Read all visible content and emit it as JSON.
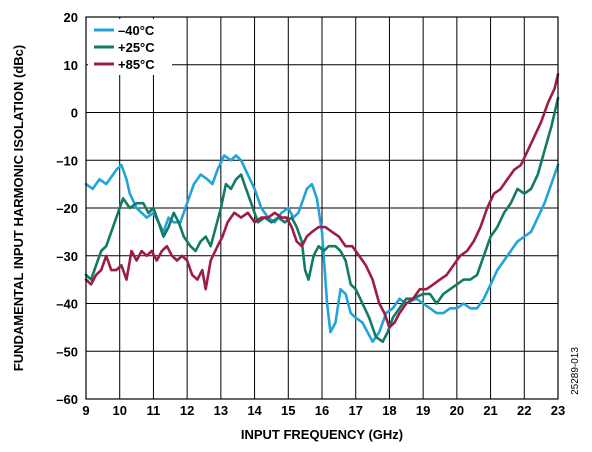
{
  "chart_data": {
    "type": "line",
    "title": "",
    "xlabel": "INPUT FREQUENCY (GHz)",
    "ylabel": "FUNDAMENTAL INPUT HARMONIC ISOLATION (dBc)",
    "xlim": [
      9,
      23
    ],
    "ylim": [
      -60,
      20
    ],
    "xticks": [
      "9",
      "10",
      "11",
      "12",
      "13",
      "14",
      "15",
      "16",
      "17",
      "18",
      "19",
      "20",
      "21",
      "22",
      "23"
    ],
    "yticks": [
      "20",
      "10",
      "0",
      "–10",
      "–20",
      "–30",
      "–40",
      "–50",
      "–60"
    ],
    "grid": true,
    "legend_position": "top-left",
    "figure_id": "25289-013",
    "series": [
      {
        "name": "–40°C",
        "color": "#22a4d8",
        "points": [
          [
            9.0,
            -15
          ],
          [
            9.2,
            -16
          ],
          [
            9.4,
            -14
          ],
          [
            9.6,
            -15
          ],
          [
            9.8,
            -13
          ],
          [
            9.9,
            -12
          ],
          [
            10.05,
            -11
          ],
          [
            10.2,
            -14
          ],
          [
            10.3,
            -17
          ],
          [
            10.5,
            -20
          ],
          [
            10.8,
            -22
          ],
          [
            11.0,
            -21
          ],
          [
            11.15,
            -23
          ],
          [
            11.3,
            -25
          ],
          [
            11.45,
            -22
          ],
          [
            11.6,
            -23
          ],
          [
            11.8,
            -23
          ],
          [
            12.0,
            -19
          ],
          [
            12.2,
            -15
          ],
          [
            12.4,
            -13
          ],
          [
            12.6,
            -14
          ],
          [
            12.75,
            -15
          ],
          [
            12.9,
            -12
          ],
          [
            13.1,
            -9
          ],
          [
            13.3,
            -10
          ],
          [
            13.45,
            -9
          ],
          [
            13.6,
            -10
          ],
          [
            13.8,
            -13
          ],
          [
            14.0,
            -16
          ],
          [
            14.2,
            -20
          ],
          [
            14.4,
            -22
          ],
          [
            14.6,
            -23
          ],
          [
            14.8,
            -21
          ],
          [
            15.0,
            -20
          ],
          [
            15.15,
            -22
          ],
          [
            15.3,
            -21
          ],
          [
            15.45,
            -18
          ],
          [
            15.55,
            -16
          ],
          [
            15.7,
            -15
          ],
          [
            15.85,
            -18
          ],
          [
            16.0,
            -25
          ],
          [
            16.15,
            -40
          ],
          [
            16.25,
            -46
          ],
          [
            16.4,
            -44
          ],
          [
            16.55,
            -37
          ],
          [
            16.7,
            -38
          ],
          [
            16.85,
            -42
          ],
          [
            17.0,
            -43
          ],
          [
            17.2,
            -44
          ],
          [
            17.35,
            -46
          ],
          [
            17.5,
            -48
          ],
          [
            17.7,
            -46
          ],
          [
            17.9,
            -42
          ],
          [
            18.1,
            -41
          ],
          [
            18.3,
            -39
          ],
          [
            18.5,
            -40
          ],
          [
            18.8,
            -39
          ],
          [
            19.0,
            -40
          ],
          [
            19.2,
            -41
          ],
          [
            19.4,
            -42
          ],
          [
            19.6,
            -42
          ],
          [
            19.8,
            -41
          ],
          [
            20.0,
            -41
          ],
          [
            20.2,
            -40
          ],
          [
            20.4,
            -41
          ],
          [
            20.6,
            -41
          ],
          [
            20.8,
            -39
          ],
          [
            21.0,
            -36
          ],
          [
            21.2,
            -33
          ],
          [
            21.4,
            -31
          ],
          [
            21.6,
            -29
          ],
          [
            21.8,
            -27
          ],
          [
            22.0,
            -26
          ],
          [
            22.2,
            -25
          ],
          [
            22.4,
            -22
          ],
          [
            22.6,
            -19
          ],
          [
            22.8,
            -15
          ],
          [
            23.0,
            -11
          ]
        ]
      },
      {
        "name": "+25°C",
        "color": "#127a66",
        "points": [
          [
            9.0,
            -34
          ],
          [
            9.15,
            -35
          ],
          [
            9.3,
            -32
          ],
          [
            9.45,
            -29
          ],
          [
            9.6,
            -28
          ],
          [
            9.8,
            -24
          ],
          [
            9.95,
            -21
          ],
          [
            10.1,
            -18
          ],
          [
            10.3,
            -20
          ],
          [
            10.5,
            -19
          ],
          [
            10.7,
            -19
          ],
          [
            10.85,
            -21
          ],
          [
            11.0,
            -20
          ],
          [
            11.15,
            -23
          ],
          [
            11.3,
            -26
          ],
          [
            11.45,
            -24
          ],
          [
            11.6,
            -21
          ],
          [
            11.75,
            -23
          ],
          [
            11.9,
            -26
          ],
          [
            12.1,
            -28
          ],
          [
            12.25,
            -29
          ],
          [
            12.4,
            -27
          ],
          [
            12.55,
            -26
          ],
          [
            12.7,
            -28
          ],
          [
            12.85,
            -24
          ],
          [
            13.0,
            -20
          ],
          [
            13.15,
            -15
          ],
          [
            13.3,
            -16
          ],
          [
            13.45,
            -14
          ],
          [
            13.6,
            -13
          ],
          [
            13.75,
            -16
          ],
          [
            13.9,
            -19
          ],
          [
            14.1,
            -23
          ],
          [
            14.3,
            -22
          ],
          [
            14.5,
            -23
          ],
          [
            14.7,
            -22
          ],
          [
            14.9,
            -23
          ],
          [
            15.1,
            -22
          ],
          [
            15.25,
            -24
          ],
          [
            15.4,
            -27
          ],
          [
            15.5,
            -33
          ],
          [
            15.6,
            -35
          ],
          [
            15.75,
            -30
          ],
          [
            15.9,
            -28
          ],
          [
            16.05,
            -29
          ],
          [
            16.2,
            -28
          ],
          [
            16.4,
            -28
          ],
          [
            16.55,
            -29
          ],
          [
            16.7,
            -31
          ],
          [
            16.85,
            -36
          ],
          [
            17.0,
            -37
          ],
          [
            17.2,
            -40
          ],
          [
            17.4,
            -43
          ],
          [
            17.6,
            -47
          ],
          [
            17.8,
            -48
          ],
          [
            17.95,
            -46
          ],
          [
            18.1,
            -43
          ],
          [
            18.3,
            -41
          ],
          [
            18.5,
            -39
          ],
          [
            18.7,
            -39
          ],
          [
            19.0,
            -38
          ],
          [
            19.2,
            -38
          ],
          [
            19.4,
            -40
          ],
          [
            19.6,
            -38
          ],
          [
            19.8,
            -37
          ],
          [
            20.0,
            -36
          ],
          [
            20.2,
            -35
          ],
          [
            20.4,
            -35
          ],
          [
            20.6,
            -34
          ],
          [
            20.8,
            -30
          ],
          [
            21.0,
            -26
          ],
          [
            21.2,
            -24
          ],
          [
            21.4,
            -21
          ],
          [
            21.6,
            -19
          ],
          [
            21.8,
            -16
          ],
          [
            22.0,
            -17
          ],
          [
            22.2,
            -16
          ],
          [
            22.4,
            -13
          ],
          [
            22.6,
            -8
          ],
          [
            22.8,
            -3
          ],
          [
            23.0,
            3
          ]
        ]
      },
      {
        "name": "+85°C",
        "color": "#9e1d46",
        "points": [
          [
            9.0,
            -35
          ],
          [
            9.15,
            -36
          ],
          [
            9.3,
            -34
          ],
          [
            9.45,
            -33
          ],
          [
            9.6,
            -30
          ],
          [
            9.75,
            -33
          ],
          [
            9.9,
            -33
          ],
          [
            10.05,
            -32
          ],
          [
            10.2,
            -35
          ],
          [
            10.35,
            -29
          ],
          [
            10.5,
            -31
          ],
          [
            10.65,
            -29
          ],
          [
            10.8,
            -30
          ],
          [
            10.95,
            -29
          ],
          [
            11.1,
            -31
          ],
          [
            11.25,
            -29
          ],
          [
            11.4,
            -28
          ],
          [
            11.55,
            -30
          ],
          [
            11.7,
            -31
          ],
          [
            11.85,
            -30
          ],
          [
            12.0,
            -31
          ],
          [
            12.15,
            -34
          ],
          [
            12.3,
            -35
          ],
          [
            12.45,
            -33
          ],
          [
            12.55,
            -37
          ],
          [
            12.7,
            -31
          ],
          [
            12.9,
            -28
          ],
          [
            13.05,
            -26
          ],
          [
            13.2,
            -23
          ],
          [
            13.4,
            -21
          ],
          [
            13.6,
            -22
          ],
          [
            13.8,
            -21
          ],
          [
            14.0,
            -23
          ],
          [
            14.2,
            -22
          ],
          [
            14.4,
            -22
          ],
          [
            14.6,
            -21
          ],
          [
            14.8,
            -22
          ],
          [
            14.95,
            -22
          ],
          [
            15.1,
            -24
          ],
          [
            15.25,
            -27
          ],
          [
            15.4,
            -28
          ],
          [
            15.55,
            -26
          ],
          [
            15.7,
            -25
          ],
          [
            15.9,
            -24
          ],
          [
            16.1,
            -24
          ],
          [
            16.3,
            -25
          ],
          [
            16.5,
            -26
          ],
          [
            16.7,
            -28
          ],
          [
            16.9,
            -28
          ],
          [
            17.1,
            -30
          ],
          [
            17.3,
            -32
          ],
          [
            17.5,
            -35
          ],
          [
            17.7,
            -40
          ],
          [
            17.85,
            -42
          ],
          [
            18.0,
            -45
          ],
          [
            18.15,
            -44
          ],
          [
            18.3,
            -42
          ],
          [
            18.5,
            -40
          ],
          [
            18.7,
            -39
          ],
          [
            18.9,
            -37
          ],
          [
            19.1,
            -37
          ],
          [
            19.3,
            -36
          ],
          [
            19.5,
            -35
          ],
          [
            19.7,
            -34
          ],
          [
            19.9,
            -32
          ],
          [
            20.1,
            -30
          ],
          [
            20.3,
            -29
          ],
          [
            20.5,
            -27
          ],
          [
            20.7,
            -24
          ],
          [
            20.9,
            -20
          ],
          [
            21.1,
            -17
          ],
          [
            21.3,
            -16
          ],
          [
            21.5,
            -14
          ],
          [
            21.7,
            -12
          ],
          [
            21.9,
            -11
          ],
          [
            22.1,
            -8
          ],
          [
            22.3,
            -5
          ],
          [
            22.5,
            -2
          ],
          [
            22.7,
            2
          ],
          [
            22.9,
            5
          ],
          [
            23.0,
            8
          ]
        ]
      }
    ]
  }
}
